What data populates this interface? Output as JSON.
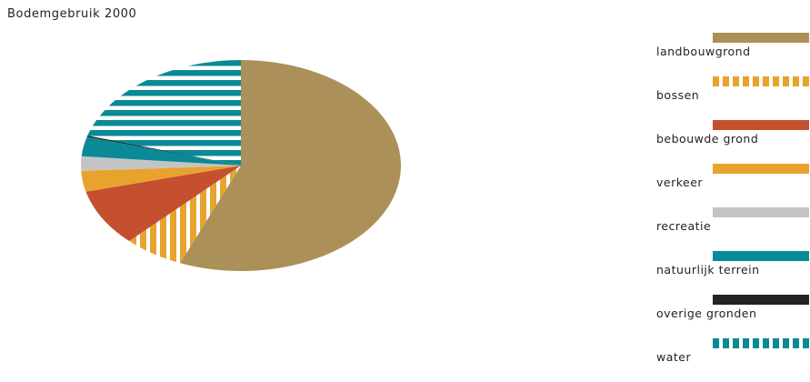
{
  "chart_data": {
    "type": "pie",
    "title": "Bodemgebruik 2000",
    "slices": [
      {
        "label": "landbouwgrond",
        "value": 56.2,
        "color": "#ab9159",
        "pattern": "solid"
      },
      {
        "label": "bossen",
        "value": 6.1,
        "color": "#e8a22e",
        "pattern": "vertical-stripes"
      },
      {
        "label": "bebouwde grond",
        "value": 8.7,
        "color": "#c4502f",
        "pattern": "solid"
      },
      {
        "label": "verkeer",
        "value": 3.2,
        "color": "#e8a22e",
        "pattern": "solid"
      },
      {
        "label": "recreatie",
        "value": 2.2,
        "color": "#c4c4c4",
        "pattern": "solid"
      },
      {
        "label": "natuurlijk terrein",
        "value": 3.0,
        "color": "#0a8a96",
        "pattern": "solid"
      },
      {
        "label": "overige gronden",
        "value": 0.2,
        "color": "#232323",
        "pattern": "solid"
      },
      {
        "label": "water",
        "value": 20.4,
        "color": "#0a8a96",
        "pattern": "horizontal-stripes"
      }
    ],
    "legend_position": "right"
  }
}
